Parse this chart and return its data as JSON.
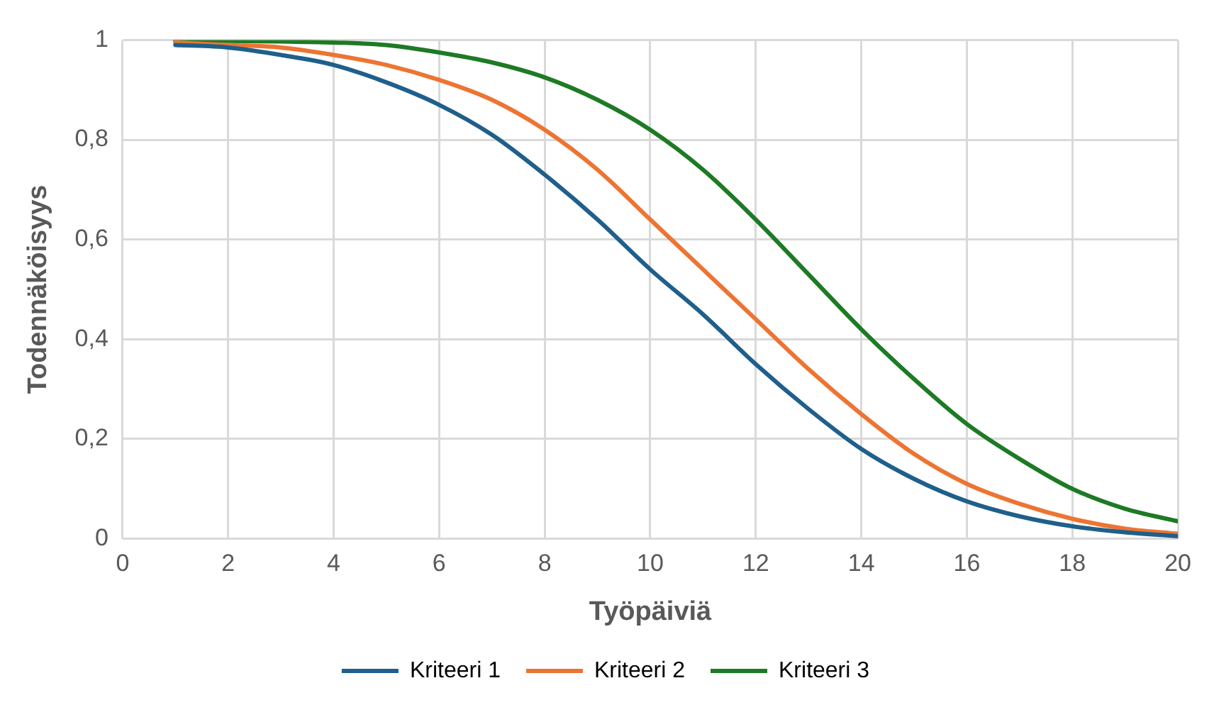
{
  "chart_data": {
    "type": "line",
    "xlabel": "Työpäiviä",
    "ylabel": "Todennäköisyys",
    "x": [
      1,
      2,
      3,
      4,
      5,
      6,
      7,
      8,
      9,
      10,
      11,
      12,
      13,
      14,
      15,
      16,
      17,
      18,
      19,
      20
    ],
    "series": [
      {
        "name": "Kriteeri 1",
        "color": "#1f5f8b",
        "values": [
          0.99,
          0.985,
          0.97,
          0.95,
          0.915,
          0.87,
          0.81,
          0.73,
          0.64,
          0.54,
          0.45,
          0.35,
          0.26,
          0.18,
          0.12,
          0.075,
          0.045,
          0.025,
          0.013,
          0.005
        ]
      },
      {
        "name": "Kriteeri 2",
        "color": "#ed7432",
        "values": [
          0.995,
          0.99,
          0.985,
          0.97,
          0.95,
          0.92,
          0.88,
          0.82,
          0.74,
          0.64,
          0.54,
          0.44,
          0.34,
          0.25,
          0.17,
          0.11,
          0.07,
          0.04,
          0.02,
          0.01
        ]
      },
      {
        "name": "Kriteeri 3",
        "color": "#1e7a24",
        "values": [
          0.998,
          0.998,
          0.997,
          0.995,
          0.99,
          0.975,
          0.955,
          0.925,
          0.88,
          0.82,
          0.74,
          0.64,
          0.53,
          0.42,
          0.32,
          0.23,
          0.16,
          0.1,
          0.06,
          0.035
        ]
      }
    ],
    "xlim": [
      0,
      20
    ],
    "xticks": [
      0,
      2,
      4,
      6,
      8,
      10,
      12,
      14,
      16,
      18,
      20
    ],
    "ylim": [
      0,
      1
    ],
    "yticks": [
      0,
      {
        "value": 0.2,
        "label": "0,2"
      },
      {
        "value": 0.4,
        "label": "0,4"
      },
      {
        "value": 0.6,
        "label": "0,6"
      },
      {
        "value": 0.8,
        "label": "0,8"
      },
      1
    ],
    "grid": true,
    "legend": "bottom",
    "marker": "none",
    "line_style": "solid"
  }
}
